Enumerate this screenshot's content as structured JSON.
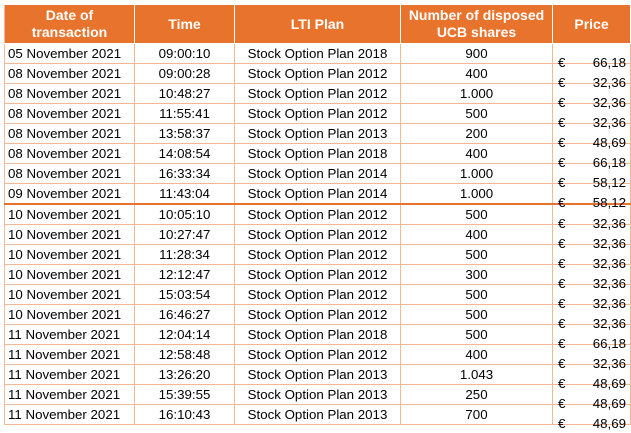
{
  "headers": {
    "date": "Date of transaction",
    "time": "Time",
    "plan": "LTI Plan",
    "shares": "Number of disposed UCB shares",
    "price": "Price"
  },
  "currency": "€",
  "rows": [
    {
      "date": "05 November 2021",
      "time": "09:00:10",
      "plan": "Stock Option Plan 2018",
      "shares": "900",
      "price": "66,18"
    },
    {
      "date": "08 November 2021",
      "time": "09:00:28",
      "plan": "Stock Option Plan 2012",
      "shares": "400",
      "price": "32,36"
    },
    {
      "date": "08 November 2021",
      "time": "10:48:27",
      "plan": "Stock Option Plan 2012",
      "shares": "1.000",
      "price": "32,36"
    },
    {
      "date": "08 November 2021",
      "time": "11:55:41",
      "plan": "Stock Option Plan 2012",
      "shares": "500",
      "price": "32,36"
    },
    {
      "date": "08 November 2021",
      "time": "13:58:37",
      "plan": "Stock Option Plan 2013",
      "shares": "200",
      "price": "48,69"
    },
    {
      "date": "08 November 2021",
      "time": "14:08:54",
      "plan": "Stock Option Plan 2018",
      "shares": "400",
      "price": "66,18"
    },
    {
      "date": "08 November 2021",
      "time": "16:33:34",
      "plan": "Stock Option Plan 2014",
      "shares": "1.000",
      "price": "58,12"
    },
    {
      "date": "09 November 2021",
      "time": "11:43:04",
      "plan": "Stock Option Plan 2014",
      "shares": "1.000",
      "price": "58,12"
    },
    {
      "date": "10 November 2021",
      "time": "10:05:10",
      "plan": "Stock Option Plan 2012",
      "shares": "500",
      "price": "32,36"
    },
    {
      "date": "10 November 2021",
      "time": "10:27:47",
      "plan": "Stock Option Plan 2012",
      "shares": "400",
      "price": "32,36"
    },
    {
      "date": "10 November 2021",
      "time": "11:28:34",
      "plan": "Stock Option Plan 2012",
      "shares": "500",
      "price": "32,36"
    },
    {
      "date": "10 November 2021",
      "time": "12:12:47",
      "plan": "Stock Option Plan 2012",
      "shares": "300",
      "price": "32,36"
    },
    {
      "date": "10 November 2021",
      "time": "15:03:54",
      "plan": "Stock Option Plan 2012",
      "shares": "500",
      "price": "32,36"
    },
    {
      "date": "10 November 2021",
      "time": "16:46:27",
      "plan": "Stock Option Plan 2012",
      "shares": "500",
      "price": "32,36"
    },
    {
      "date": "11 November 2021",
      "time": "12:04:14",
      "plan": "Stock Option Plan 2018",
      "shares": "500",
      "price": "66,18"
    },
    {
      "date": "11 November 2021",
      "time": "12:58:48",
      "plan": "Stock Option Plan 2012",
      "shares": "400",
      "price": "32,36"
    },
    {
      "date": "11 November 2021",
      "time": "13:26:20",
      "plan": "Stock Option Plan 2013",
      "shares": "1.043",
      "price": "48,69"
    },
    {
      "date": "11 November 2021",
      "time": "15:39:55",
      "plan": "Stock Option Plan 2013",
      "shares": "250",
      "price": "48,69"
    },
    {
      "date": "11 November 2021",
      "time": "16:10:43",
      "plan": "Stock Option Plan 2013",
      "shares": "700",
      "price": "48,69"
    }
  ],
  "colors": {
    "header_bg": "#e8732c",
    "header_text": "#ffffff",
    "grid": "#f0b894"
  }
}
